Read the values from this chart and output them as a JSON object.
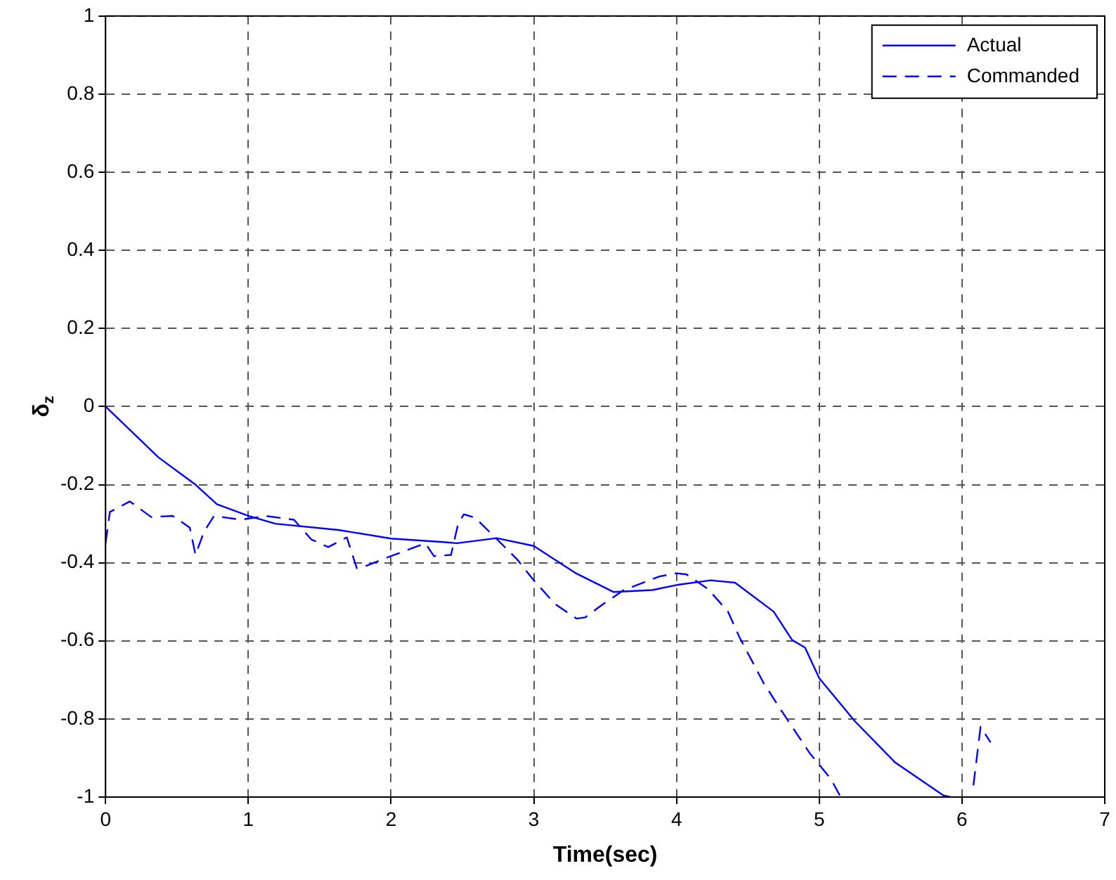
{
  "chart_data": {
    "type": "line",
    "xlabel": "Time(sec)",
    "ylabel": "δ$_{z}$",
    "xlim": [
      0,
      7
    ],
    "ylim": [
      -1,
      1
    ],
    "xticks": [
      0,
      1,
      2,
      3,
      4,
      5,
      6,
      7
    ],
    "yticks": [
      -1,
      -0.8,
      -0.6,
      -0.4,
      -0.2,
      0,
      0.2,
      0.4,
      0.6,
      0.8,
      1
    ],
    "grid": true,
    "legend": "top right",
    "marker": "none",
    "series": [
      {
        "name": "Actual",
        "color": "#0000ff",
        "line_style": "solid",
        "x": [
          0,
          0.37,
          0.63,
          0.78,
          1.0,
          1.19,
          1.63,
          2.0,
          2.37,
          2.46,
          2.74,
          3.0,
          3.29,
          3.56,
          3.83,
          4.0,
          4.24,
          4.41,
          4.68,
          4.81,
          4.9,
          5.0,
          5.25,
          5.53,
          5.87,
          5.92
        ],
        "values": [
          0,
          -0.13,
          -0.2,
          -0.25,
          -0.28,
          -0.3,
          -0.316,
          -0.338,
          -0.347,
          -0.35,
          -0.337,
          -0.357,
          -0.426,
          -0.475,
          -0.47,
          -0.457,
          -0.445,
          -0.451,
          -0.525,
          -0.598,
          -0.617,
          -0.696,
          -0.806,
          -0.911,
          -0.996,
          -1
        ]
      },
      {
        "name": "Commanded",
        "color": "#0000ff",
        "line_style": "dashed",
        "x": [
          0,
          0.03,
          0.17,
          0.32,
          0.47,
          0.59,
          0.63,
          0.69,
          0.76,
          0.95,
          1.12,
          1.32,
          1.44,
          1.56,
          1.69,
          1.76,
          1.81,
          2.0,
          2.24,
          2.3,
          2.42,
          2.47,
          2.51,
          2.59,
          2.88,
          3.0,
          3.15,
          3.3,
          3.36,
          3.47,
          3.63,
          3.88,
          4.0,
          4.07,
          4.22,
          4.36,
          4.44,
          4.61,
          4.73,
          4.93,
          5.08,
          5.15,
          5.6,
          6.08,
          6.13,
          6.2
        ],
        "values": [
          -0.35,
          -0.27,
          -0.243,
          -0.283,
          -0.28,
          -0.31,
          -0.38,
          -0.32,
          -0.28,
          -0.29,
          -0.28,
          -0.29,
          -0.34,
          -0.36,
          -0.335,
          -0.414,
          -0.41,
          -0.383,
          -0.35,
          -0.383,
          -0.38,
          -0.3,
          -0.276,
          -0.285,
          -0.39,
          -0.445,
          -0.506,
          -0.543,
          -0.54,
          -0.51,
          -0.47,
          -0.435,
          -0.427,
          -0.43,
          -0.467,
          -0.525,
          -0.59,
          -0.708,
          -0.776,
          -0.886,
          -0.953,
          -1,
          null,
          -0.97,
          -0.82,
          -0.86
        ]
      }
    ]
  }
}
